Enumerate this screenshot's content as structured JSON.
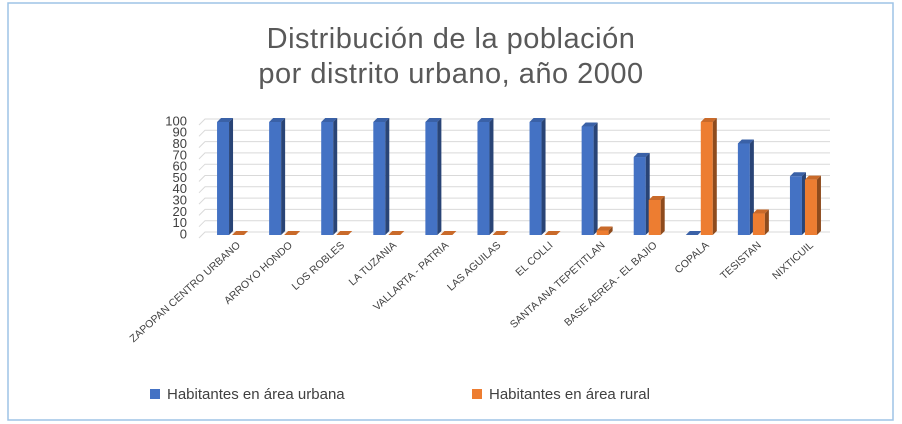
{
  "chart_data": {
    "type": "bar3d",
    "title": "Distribución de la población por distrito urbano, año 2000",
    "categories": [
      "ZAPOPAN CENTRO URBANO",
      "ARROYO HONDO",
      "LOS ROBLES",
      "LA TUZANIA",
      "VALLARTA - PATRIA",
      "LAS AGUILAS",
      "EL COLLI",
      "SANTA ANA TEPETITLAN",
      "BASE AEREA - EL BAJIO",
      "COPALA",
      "TESISTAN",
      "NIXTICUIL"
    ],
    "series": [
      {
        "name": "Habitantes en área urbana",
        "color": "#4472c4",
        "values": [
          100,
          100,
          100,
          100,
          100,
          100,
          100,
          96,
          69,
          0,
          81,
          52
        ]
      },
      {
        "name": "Habitantes en área rural",
        "color": "#ed7d31",
        "values": [
          0,
          0,
          0,
          0,
          0,
          0,
          0,
          4,
          31,
          100,
          19,
          49
        ]
      }
    ],
    "ylim": [
      0,
      100
    ],
    "yticks": [
      0,
      10,
      20,
      30,
      40,
      50,
      60,
      70,
      80,
      90,
      100
    ],
    "grid": true,
    "legend": "bottom"
  }
}
